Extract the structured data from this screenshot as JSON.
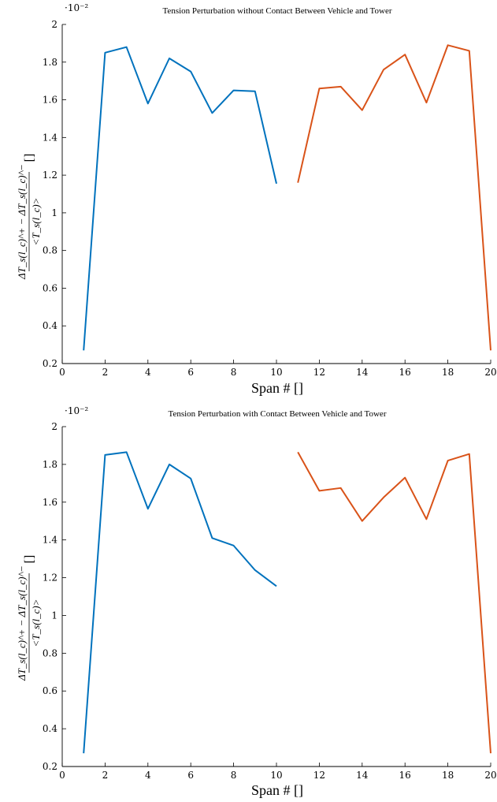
{
  "chart_data": [
    {
      "type": "line",
      "title": "Tension Perturbation without Contact Between Vehicle and Tower",
      "xlabel": "Span # []",
      "ylabel_numerator": "ΔT_s(l_c)^+ − ΔT_s(l_c)^−",
      "ylabel_denominator": "<T_s(l_c)>",
      "ylabel_unit": "[]",
      "y_multiplier": "·10⁻²",
      "xlim": [
        0,
        20
      ],
      "ylim": [
        0.2,
        2
      ],
      "x_ticks": [
        0,
        2,
        4,
        6,
        8,
        10,
        12,
        14,
        16,
        18,
        20
      ],
      "y_ticks": [
        0.2,
        0.4,
        0.6,
        0.8,
        1,
        1.2,
        1.4,
        1.6,
        1.8,
        2
      ],
      "grid": false,
      "series": [
        {
          "color": "#0072BD",
          "x": [
            1,
            2,
            3,
            4,
            5,
            6,
            7,
            8,
            9,
            10
          ],
          "y": [
            0.27,
            1.85,
            1.88,
            1.58,
            1.82,
            1.75,
            1.53,
            1.65,
            1.645,
            1.155
          ]
        },
        {
          "color": "#D95319",
          "x": [
            11,
            12,
            13,
            14,
            15,
            16,
            17,
            18,
            19,
            20
          ],
          "y": [
            1.16,
            1.66,
            1.67,
            1.545,
            1.76,
            1.84,
            1.585,
            1.89,
            1.86,
            0.27
          ]
        }
      ]
    },
    {
      "type": "line",
      "title": "Tension Perturbation with Contact Between Vehicle and Tower",
      "xlabel": "Span # []",
      "ylabel_numerator": "ΔT_s(l_c)^+ − ΔT_s(l_c)^−",
      "ylabel_denominator": "<T_s(l_c)>",
      "ylabel_unit": "[]",
      "y_multiplier": "·10⁻²",
      "xlim": [
        0,
        20
      ],
      "ylim": [
        0.2,
        2
      ],
      "x_ticks": [
        0,
        2,
        4,
        6,
        8,
        10,
        12,
        14,
        16,
        18,
        20
      ],
      "y_ticks": [
        0.2,
        0.4,
        0.6,
        0.8,
        1,
        1.2,
        1.4,
        1.6,
        1.8,
        2
      ],
      "grid": false,
      "series": [
        {
          "color": "#0072BD",
          "x": [
            1,
            2,
            3,
            4,
            5,
            6,
            7,
            8,
            9,
            10
          ],
          "y": [
            0.27,
            1.85,
            1.865,
            1.565,
            1.8,
            1.725,
            1.41,
            1.37,
            1.24,
            1.155
          ]
        },
        {
          "color": "#D95319",
          "x": [
            11,
            12,
            13,
            14,
            15,
            16,
            17,
            18,
            19,
            20
          ],
          "y": [
            1.865,
            1.66,
            1.675,
            1.5,
            1.625,
            1.73,
            1.51,
            1.82,
            1.855,
            0.27
          ]
        }
      ]
    }
  ]
}
